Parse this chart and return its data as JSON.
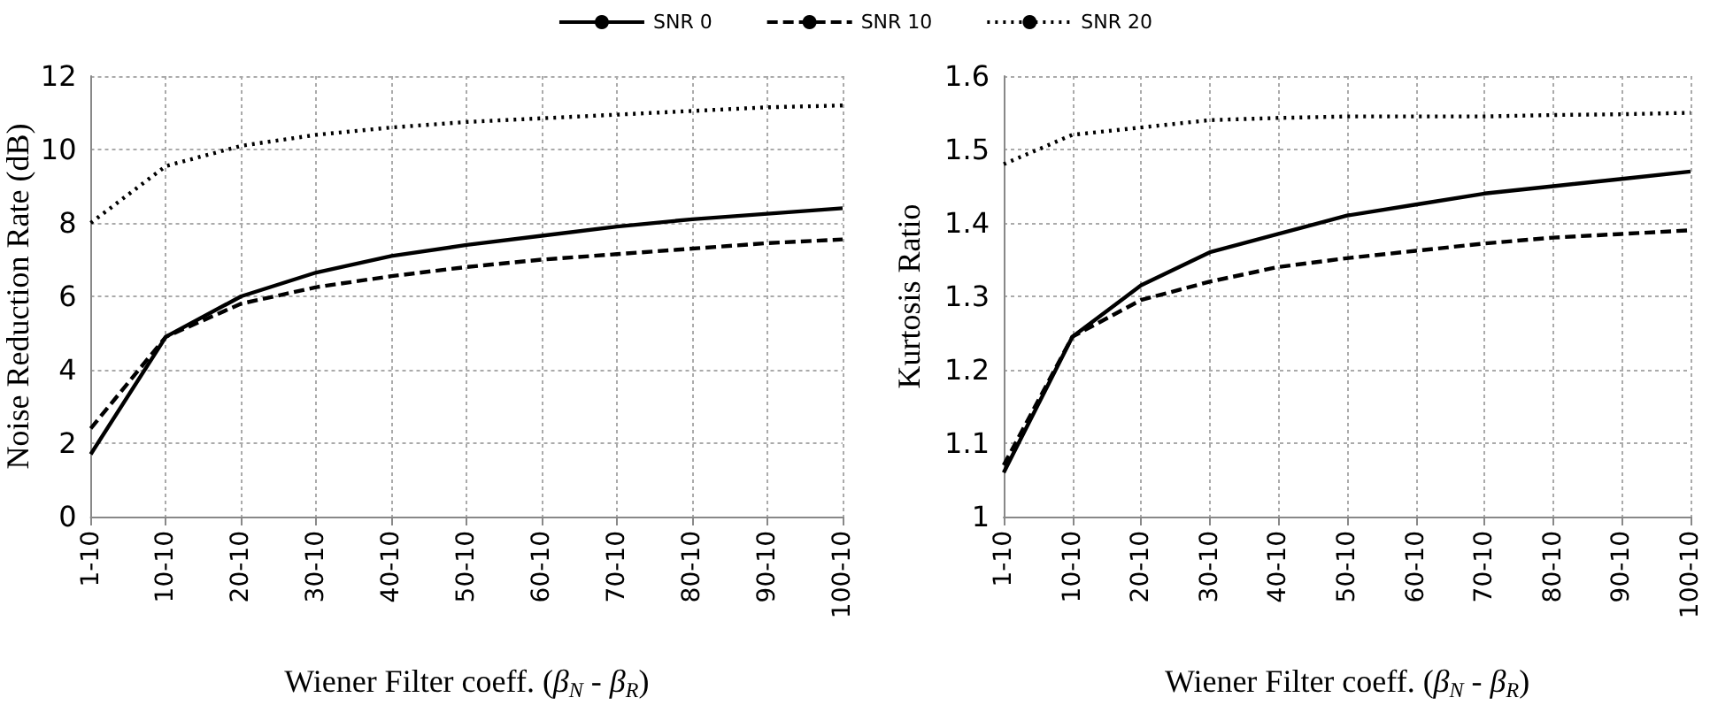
{
  "chart_data": [
    {
      "type": "line",
      "xlabel": "Wiener Filter coeff. (β$_{N}$ - β$_{R}$)",
      "ylabel": "Noise Reduction Rate (dB)",
      "categories": [
        "1-10",
        "10-10",
        "20-10",
        "30-10",
        "40-10",
        "50-10",
        "60-10",
        "70-10",
        "80-10",
        "90-10",
        "100-10"
      ],
      "series": [
        {
          "name": "SNR 0",
          "color": "#000000",
          "line_style": "solid",
          "values": [
            1.7,
            4.9,
            6.0,
            6.65,
            7.1,
            7.4,
            7.65,
            7.9,
            8.1,
            8.25,
            8.4
          ]
        },
        {
          "name": "SNR 10",
          "color": "#000000",
          "line_style": "dashed",
          "values": [
            2.4,
            4.9,
            5.8,
            6.25,
            6.55,
            6.8,
            7.0,
            7.15,
            7.3,
            7.45,
            7.55
          ]
        },
        {
          "name": "SNR 20",
          "color": "#000000",
          "line_style": "dotted",
          "values": [
            8.0,
            9.55,
            10.1,
            10.4,
            10.6,
            10.75,
            10.85,
            10.95,
            11.05,
            11.15,
            11.2
          ]
        }
      ],
      "ylim": [
        0,
        12
      ],
      "yticks": [
        0,
        2,
        4,
        6,
        8,
        10,
        12
      ],
      "grid": true,
      "legend": "top",
      "marker": "none"
    },
    {
      "type": "line",
      "xlabel": "Wiener Filter coeff. (β$_{N}$ - β$_{R}$)",
      "ylabel": "Kurtosis Ratio",
      "categories": [
        "1-10",
        "10-10",
        "20-10",
        "30-10",
        "40-10",
        "50-10",
        "60-10",
        "70-10",
        "80-10",
        "90-10",
        "100-10"
      ],
      "series": [
        {
          "color": "#000000",
          "line_style": "solid",
          "values": [
            1.06,
            1.245,
            1.315,
            1.36,
            1.385,
            1.41,
            1.425,
            1.44,
            1.45,
            1.46,
            1.47
          ]
        },
        {
          "color": "#000000",
          "line_style": "dashed",
          "values": [
            1.07,
            1.245,
            1.295,
            1.32,
            1.34,
            1.352,
            1.362,
            1.372,
            1.38,
            1.385,
            1.39
          ]
        },
        {
          "color": "#000000",
          "line_style": "dotted",
          "values": [
            1.48,
            1.52,
            1.53,
            1.54,
            1.543,
            1.545,
            1.545,
            1.545,
            1.547,
            1.548,
            1.55
          ]
        }
      ],
      "ylim": [
        1,
        1.6
      ],
      "yticks": [
        1,
        1.1,
        1.2,
        1.3,
        1.4,
        1.5,
        1.6
      ],
      "grid": true,
      "marker": "none"
    }
  ]
}
